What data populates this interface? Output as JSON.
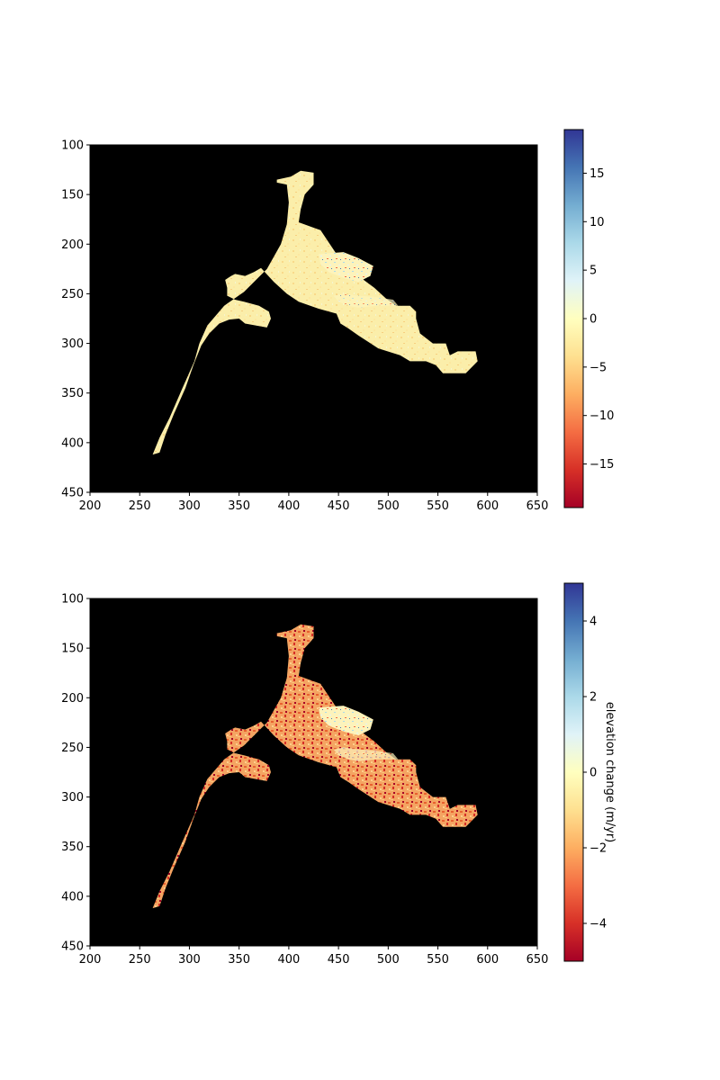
{
  "chart_data": [
    {
      "type": "heatmap",
      "title": "",
      "xlabel": "",
      "ylabel": "",
      "xlim": [
        200,
        650
      ],
      "ylim": [
        450,
        100
      ],
      "xticks": [
        200,
        250,
        300,
        350,
        400,
        450,
        500,
        550,
        600,
        650
      ],
      "yticks": [
        100,
        150,
        200,
        250,
        300,
        350,
        400,
        450
      ],
      "background_color": "#000000",
      "colormap": "RdYlBu",
      "colorbar": {
        "label": "",
        "range": [
          -19.5,
          19.5
        ],
        "ticks": [
          15,
          10,
          5,
          0,
          -5,
          -10,
          -15
        ],
        "tick_labels": [
          "15",
          "10",
          "5",
          "0",
          "−5",
          "−10",
          "−15"
        ]
      },
      "shape_regions": [
        {
          "name": "main glacier outline",
          "points": [
            [
              263,
              412
            ],
            [
              270,
              395
            ],
            [
              280,
              375
            ],
            [
              293,
              345
            ],
            [
              305,
              318
            ],
            [
              310,
              300
            ],
            [
              318,
              282
            ],
            [
              335,
              262
            ],
            [
              355,
              248
            ],
            [
              378,
              225
            ],
            [
              392,
              200
            ],
            [
              398,
              180
            ],
            [
              400,
              158
            ],
            [
              398,
              140
            ],
            [
              388,
              138
            ],
            [
              388,
              135
            ],
            [
              402,
              132
            ],
            [
              412,
              126
            ],
            [
              425,
              128
            ],
            [
              425,
              140
            ],
            [
              416,
              150
            ],
            [
              412,
              165
            ],
            [
              410,
              178
            ],
            [
              432,
              186
            ],
            [
              440,
              198
            ],
            [
              448,
              210
            ],
            [
              458,
              222
            ],
            [
              470,
              232
            ],
            [
              486,
              244
            ],
            [
              498,
              255
            ],
            [
              508,
              262
            ],
            [
              522,
              262
            ],
            [
              528,
              268
            ],
            [
              528,
              275
            ],
            [
              532,
              290
            ],
            [
              545,
              300
            ],
            [
              558,
              300
            ],
            [
              562,
              312
            ],
            [
              570,
              308
            ],
            [
              588,
              308
            ],
            [
              590,
              318
            ],
            [
              578,
              330
            ],
            [
              555,
              330
            ],
            [
              548,
              322
            ],
            [
              538,
              318
            ],
            [
              522,
              318
            ],
            [
              512,
              312
            ],
            [
              490,
              305
            ],
            [
              470,
              292
            ],
            [
              460,
              285
            ],
            [
              452,
              280
            ],
            [
              448,
              270
            ],
            [
              430,
              265
            ],
            [
              410,
              258
            ],
            [
              398,
              250
            ],
            [
              385,
              238
            ],
            [
              372,
              224
            ],
            [
              365,
              228
            ],
            [
              356,
              232
            ],
            [
              346,
              230
            ],
            [
              342,
              232
            ],
            [
              336,
              236
            ],
            [
              338,
              244
            ],
            [
              338,
              252
            ],
            [
              346,
              256
            ],
            [
              355,
              258
            ],
            [
              370,
              262
            ],
            [
              380,
              268
            ],
            [
              382,
              275
            ],
            [
              378,
              284
            ],
            [
              356,
              280
            ],
            [
              350,
              275
            ],
            [
              340,
              276
            ],
            [
              330,
              280
            ],
            [
              320,
              290
            ],
            [
              312,
              302
            ],
            [
              304,
              322
            ],
            [
              296,
              345
            ],
            [
              284,
              372
            ],
            [
              276,
              392
            ],
            [
              270,
              410
            ]
          ]
        },
        {
          "name": "right glacier outline",
          "points": [
            [
              445,
              252
            ],
            [
              455,
              250
            ],
            [
              470,
              252
            ],
            [
              485,
              253
            ],
            [
              498,
              255
            ],
            [
              505,
              256
            ],
            [
              510,
              262
            ],
            [
              500,
              262
            ],
            [
              488,
              262
            ],
            [
              470,
              264
            ],
            [
              460,
              262
            ],
            [
              450,
              258
            ]
          ]
        }
      ],
      "value_pattern": "mostly near 0 to slightly negative; scattered positive speckles on the eastern glacier"
    },
    {
      "type": "heatmap",
      "title": "",
      "xlabel": "",
      "ylabel": "",
      "xlim": [
        200,
        650
      ],
      "ylim": [
        450,
        100
      ],
      "xticks": [
        200,
        250,
        300,
        350,
        400,
        450,
        500,
        550,
        600,
        650
      ],
      "yticks": [
        100,
        150,
        200,
        250,
        300,
        350,
        400,
        450
      ],
      "background_color": "#000000",
      "colormap": "RdYlBu",
      "colorbar": {
        "label": "elevation change (m/yr)",
        "range": [
          -5,
          5
        ],
        "ticks": [
          4,
          2,
          0,
          -2,
          -4
        ],
        "tick_labels": [
          "4",
          "2",
          "0",
          "−2",
          "−4"
        ]
      },
      "value_pattern": "strong negative (orange/red) thinning along the western glacier trunk and tributaries; mixed positive/negative speckle on the eastern glacier"
    }
  ]
}
